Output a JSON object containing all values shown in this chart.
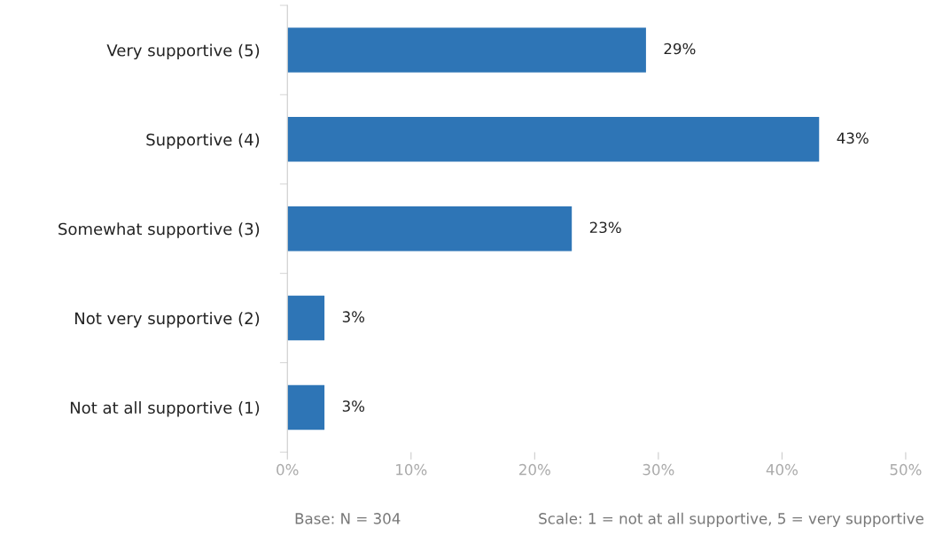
{
  "chart_data": {
    "type": "bar",
    "orientation": "horizontal",
    "categories": [
      "Very supportive (5)",
      "Supportive (4)",
      "Somewhat supportive (3)",
      "Not very supportive (2)",
      "Not at all supportive (1)"
    ],
    "values": [
      29,
      43,
      23,
      3,
      3
    ],
    "value_labels": [
      "29%",
      "43%",
      "23%",
      "3%",
      "3%"
    ],
    "color": "#2e75b6",
    "xlim": [
      0,
      50
    ],
    "xticks": [
      {
        "value": 0,
        "label": "0%"
      },
      {
        "value": 10,
        "label": "10%"
      },
      {
        "value": 20,
        "label": "20%"
      },
      {
        "value": 30,
        "label": "30%"
      },
      {
        "value": 40,
        "label": "40%"
      },
      {
        "value": 50,
        "label": "50%"
      }
    ],
    "grid": false,
    "annotations": [
      "Base: N = 304",
      "Scale: 1 = not at all supportive, 5 = very supportive"
    ]
  }
}
